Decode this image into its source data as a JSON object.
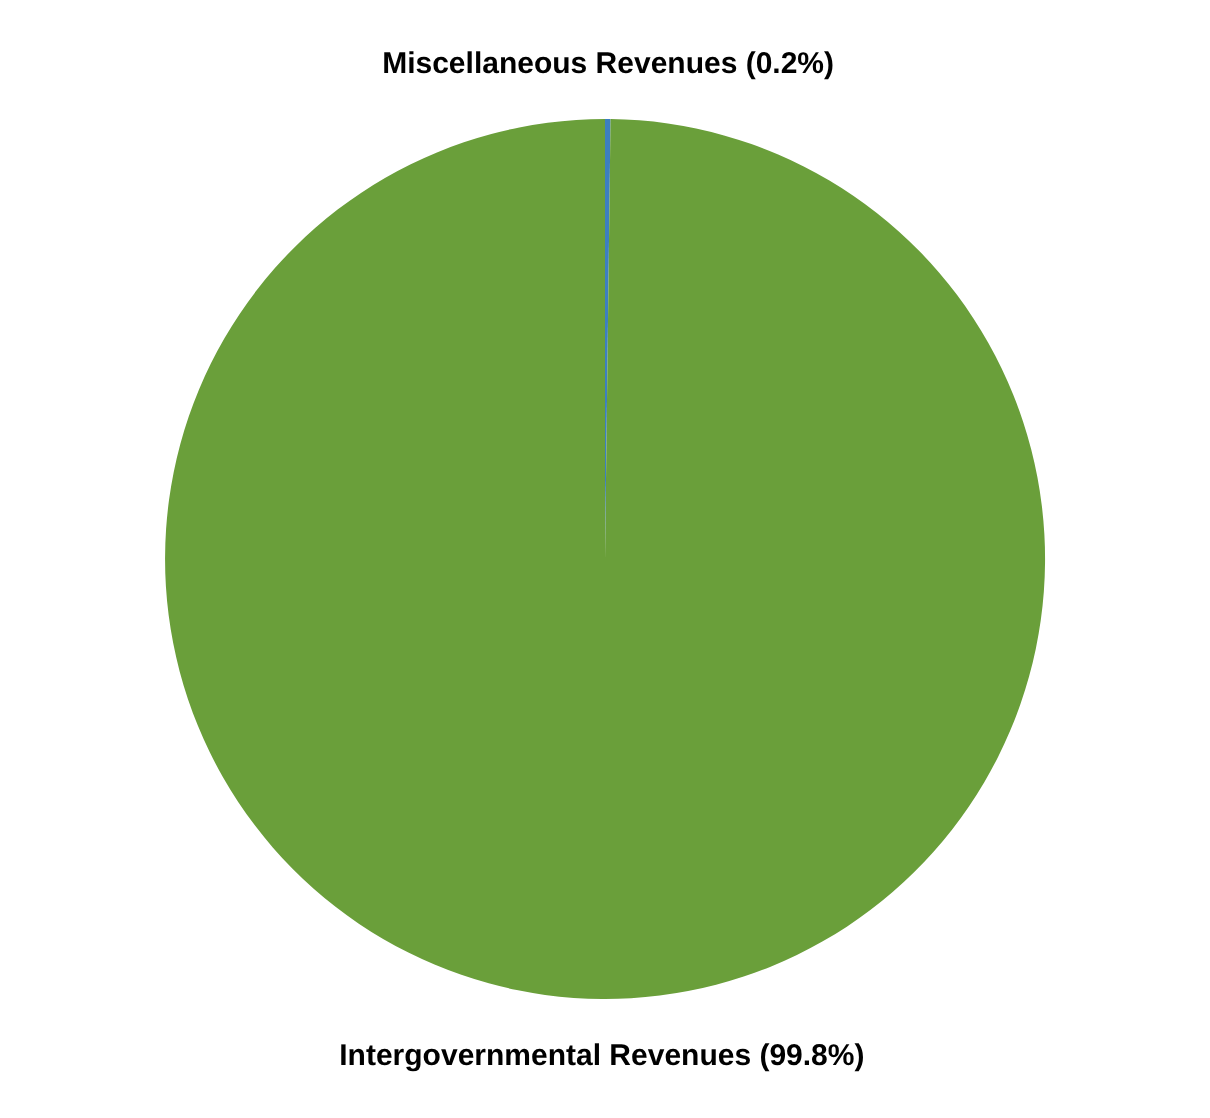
{
  "chart_data": {
    "type": "pie",
    "categories": [
      "Miscellaneous Revenues",
      "Intergovernmental Revenues"
    ],
    "values": [
      0.2,
      99.8
    ],
    "colors": [
      "#3c7fc1",
      "#6a9f3a"
    ],
    "value_labels": [
      "(0.2%)",
      "(99.8%)"
    ]
  }
}
